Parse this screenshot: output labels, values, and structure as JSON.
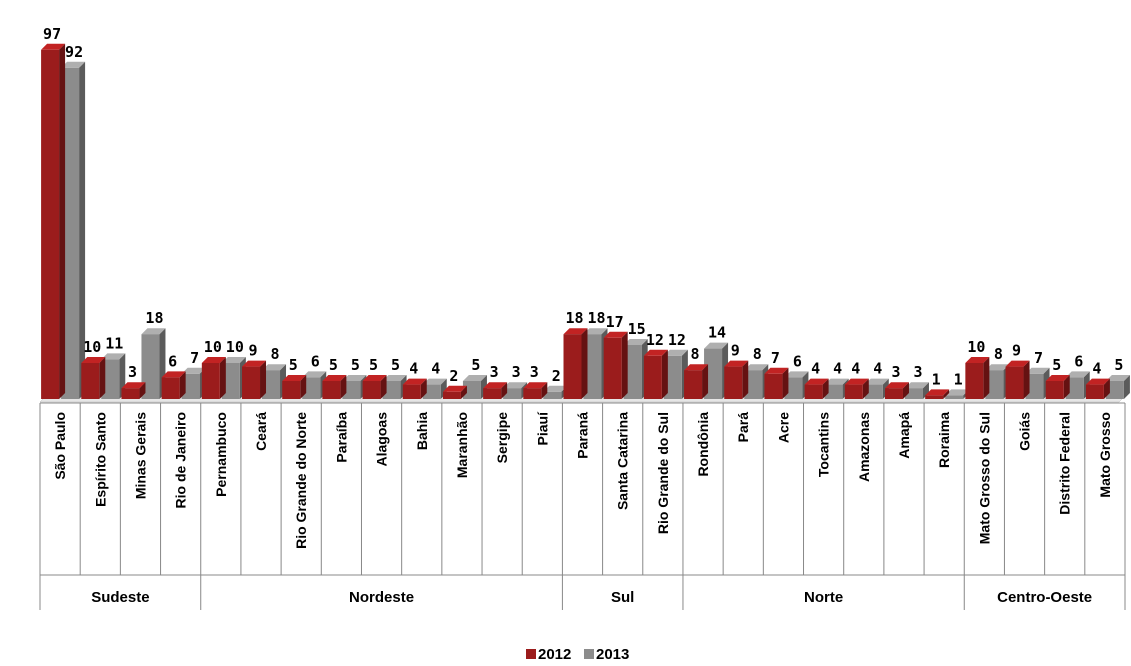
{
  "chart_data": {
    "type": "bar",
    "title": "",
    "xlabel": "",
    "ylabel": "",
    "ylim": [
      0,
      100
    ],
    "grid": false,
    "legend_position": "bottom-center",
    "categories": [
      "São Paulo",
      "Espírito Santo",
      "Minas Gerais",
      "Rio de Janeiro",
      "Pernambuco",
      "Ceará",
      "Rio Grande do Norte",
      "Paraíba",
      "Alagoas",
      "Bahia",
      "Maranhão",
      "Sergipe",
      "Piauí",
      "Paraná",
      "Santa Catarina",
      "Rio Grande do Sul",
      "Rondônia",
      "Pará",
      "Acre",
      "Tocantins",
      "Amazonas",
      "Amapá",
      "Roraima",
      "Mato Grosso do Sul",
      "Goiás",
      "Distrito Federal",
      "Mato Grosso"
    ],
    "groups": [
      {
        "name": "Sudeste",
        "start": 0,
        "count": 4
      },
      {
        "name": "Nordeste",
        "start": 4,
        "count": 9
      },
      {
        "name": "Sul",
        "start": 13,
        "count": 3
      },
      {
        "name": "Norte",
        "start": 16,
        "count": 7
      },
      {
        "name": "Centro-Oeste",
        "start": 23,
        "count": 4
      }
    ],
    "series": [
      {
        "name": "2012",
        "color": "#9b1c1c",
        "values": [
          97,
          10,
          3,
          6,
          10,
          9,
          5,
          5,
          5,
          4,
          2,
          3,
          3,
          18,
          17,
          12,
          8,
          9,
          7,
          4,
          4,
          3,
          1,
          10,
          9,
          5,
          4
        ]
      },
      {
        "name": "2013",
        "color": "#8c8c8c",
        "values": [
          92,
          11,
          18,
          7,
          10,
          8,
          6,
          5,
          5,
          4,
          5,
          3,
          2,
          18,
          15,
          12,
          14,
          8,
          6,
          4,
          4,
          3,
          1,
          8,
          7,
          6,
          5
        ]
      }
    ]
  }
}
